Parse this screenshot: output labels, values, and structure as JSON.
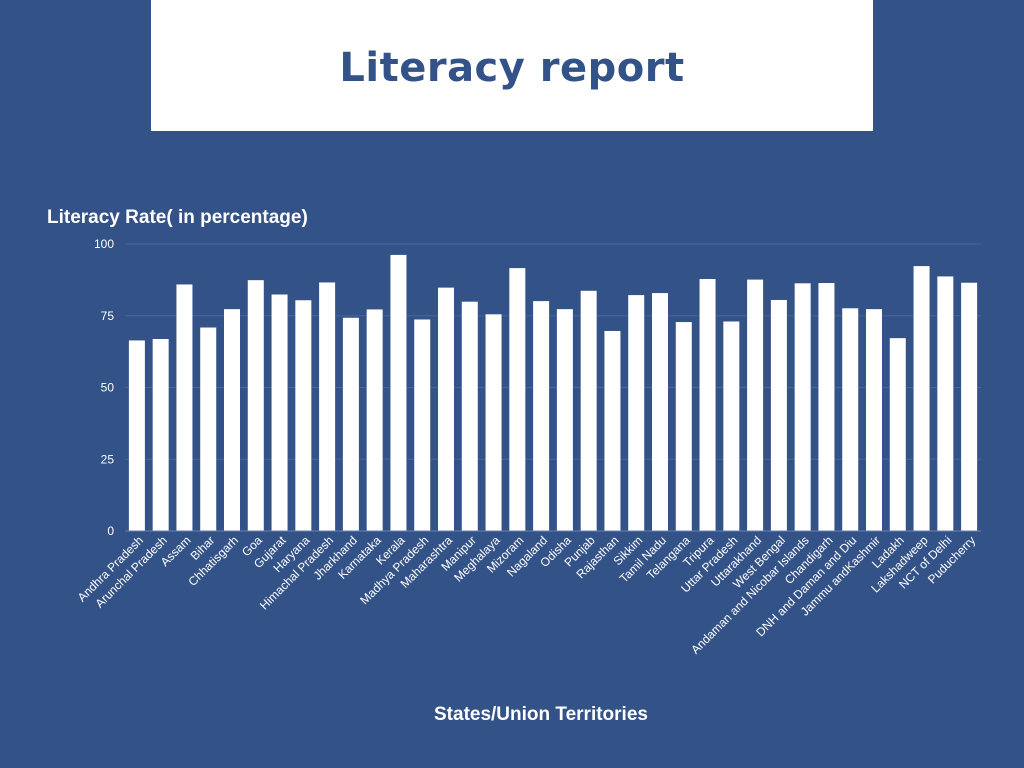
{
  "slide": {
    "title": "Literacy report",
    "background": "#335288",
    "title_box_color": "#ffffff",
    "title_color": "#335288"
  },
  "chart_data": {
    "type": "bar",
    "title": "",
    "ylabel": "Literacy Rate( in percentage)",
    "xlabel": "States/Union Territories",
    "ylim": [
      0,
      100
    ],
    "yticks": [
      0,
      25,
      50,
      75,
      100
    ],
    "grid": true,
    "bar_color": "#ffffff",
    "categories": [
      "Andhra Pradesh",
      "Arunchal Pradesh",
      "Assam",
      "Bihar",
      "Chhatisgarh",
      "Goa",
      "Gujarat",
      "Haryana",
      "Himachal Pradesh",
      "Jharkhand",
      "Karnataka",
      "Kerala",
      "Madhya Pradesh",
      "Maharashtra",
      "Manipur",
      "Meghalaya",
      "Mizoram",
      "Nagaland",
      "Odisha",
      "Punjab",
      "Rajasthan",
      "Sikkim",
      "Tamil Nadu",
      "Telangana",
      "Tripura",
      "Uttar Pradesh",
      "Uttarakhand",
      "West Bengal",
      "Andaman and Nicobar Islands",
      "Chandigarh",
      "DNH and Daman and Diu",
      "Jammu andKashmir",
      "Ladakh",
      "Lakshadweep",
      "NCT of Delhi",
      "Puducherry"
    ],
    "values": [
      66.4,
      66.9,
      85.9,
      70.9,
      77.3,
      87.4,
      82.4,
      80.4,
      86.6,
      74.3,
      77.2,
      96.2,
      73.7,
      84.8,
      79.9,
      75.5,
      91.6,
      80.1,
      77.3,
      83.7,
      69.7,
      82.2,
      82.9,
      72.8,
      87.8,
      73.0,
      87.6,
      80.5,
      86.3,
      86.4,
      77.6,
      77.3,
      67.2,
      92.3,
      88.7,
      86.5
    ]
  }
}
